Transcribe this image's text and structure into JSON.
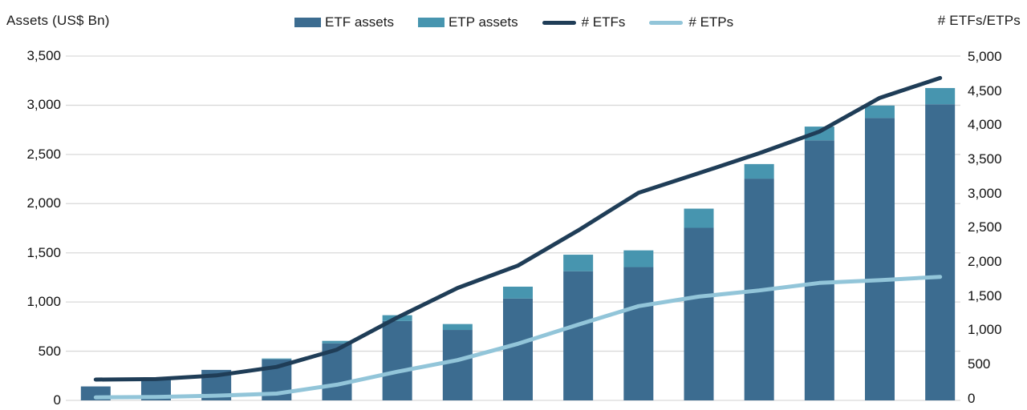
{
  "header": {
    "left_axis_title": "Assets (US$ Bn)",
    "right_axis_title": "# ETFs/ETPs"
  },
  "legend": {
    "items": [
      {
        "label": "ETF assets",
        "marker": "swatch",
        "color": "#3c6c90"
      },
      {
        "label": "ETP assets",
        "marker": "swatch",
        "color": "#4795af"
      },
      {
        "label": "# ETFs",
        "marker": "line",
        "color": "#1f3d57"
      },
      {
        "label": "# ETPs",
        "marker": "line",
        "color": "#92c5d9"
      }
    ]
  },
  "chart_data": {
    "type": "bar",
    "subtype": "stacked-bars-with-lines-combo",
    "n_points": 15,
    "x_axis": {
      "labels_visible": false
    },
    "bar_series": [
      {
        "name": "ETF assets",
        "axis": "left",
        "color": "#3c6c90",
        "values": [
          142,
          212,
          310,
          417,
          580,
          807,
          716,
          1036,
          1313,
          1355,
          1754,
          2254,
          2643,
          2870,
          3010
        ]
      },
      {
        "name": "ETP assets",
        "axis": "left",
        "color": "#4795af",
        "stacked_on": "ETF assets",
        "values": [
          0,
          0,
          0,
          9,
          25,
          59,
          60,
          120,
          168,
          170,
          195,
          148,
          140,
          127,
          165
        ]
      }
    ],
    "line_series": [
      {
        "name": "# ETFs",
        "axis": "right",
        "color": "#1f3d57",
        "values": [
          276,
          282,
          336,
          461,
          714,
          1184,
          1617,
          1944,
          2460,
          3011,
          3297,
          3588,
          3906,
          4400,
          4690
        ]
      },
      {
        "name": "# ETPs",
        "axis": "right",
        "color": "#92c5d9",
        "values": [
          15,
          20,
          40,
          70,
          200,
          390,
          560,
          800,
          1080,
          1350,
          1490,
          1580,
          1690,
          1730,
          1780
        ]
      }
    ],
    "left_axis": {
      "title": "Assets (US$ Bn)",
      "min": 0,
      "max": 3500,
      "tick_step": 500,
      "tick_labels": [
        "0",
        "500",
        "1,000",
        "1,500",
        "2,000",
        "2,500",
        "3,000",
        "3,500"
      ]
    },
    "right_axis": {
      "title": "# ETFs/ETPs",
      "min": 0,
      "max": 5000,
      "tick_step": 500,
      "tick_labels": [
        "0",
        "500",
        "1,000",
        "1,500",
        "2,000",
        "2,500",
        "3,000",
        "3,500",
        "4,000",
        "4,500",
        "5,000"
      ]
    },
    "grid": {
      "show": true,
      "color": "#d9d9d9"
    },
    "legend_position": "top"
  }
}
